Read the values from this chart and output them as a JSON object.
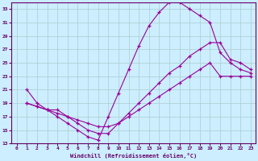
{
  "xlabel": "Windchill (Refroidissement éolien,°C)",
  "background_color": "#cceeff",
  "grid_color": "#aacccc",
  "line_color": "#990099",
  "xlim": [
    -0.5,
    23.5
  ],
  "ylim": [
    13,
    34
  ],
  "xticks": [
    0,
    1,
    2,
    3,
    4,
    5,
    6,
    7,
    8,
    9,
    10,
    11,
    12,
    13,
    14,
    15,
    16,
    17,
    18,
    19,
    20,
    21,
    22,
    23
  ],
  "yticks": [
    13,
    15,
    17,
    19,
    21,
    23,
    25,
    27,
    29,
    31,
    33
  ],
  "line1_x": [
    1,
    2,
    3,
    4,
    5,
    6,
    7,
    8,
    9,
    10,
    11,
    12,
    13,
    14,
    15,
    16,
    17,
    18,
    19,
    20,
    21,
    22,
    23
  ],
  "line1_y": [
    21,
    19,
    18,
    17,
    16,
    15,
    14,
    13.5,
    17,
    20.5,
    24,
    27.5,
    30.5,
    32.5,
    34,
    34,
    33,
    32,
    31,
    26.5,
    25,
    24,
    23.5
  ],
  "line2_x": [
    1,
    2,
    3,
    4,
    5,
    6,
    7,
    8,
    9,
    10,
    11,
    12,
    13,
    14,
    15,
    16,
    17,
    18,
    19,
    20,
    21,
    22,
    23
  ],
  "line2_y": [
    19,
    18.5,
    18,
    18,
    17,
    16,
    15,
    14.5,
    14.5,
    16,
    17.5,
    19,
    20.5,
    22,
    23.5,
    24.5,
    26,
    27,
    28,
    28,
    25.5,
    25,
    24
  ],
  "line3_x": [
    1,
    2,
    3,
    4,
    5,
    6,
    7,
    8,
    9,
    10,
    11,
    12,
    13,
    14,
    15,
    16,
    17,
    18,
    19,
    20,
    21,
    22,
    23
  ],
  "line3_y": [
    19,
    18.5,
    18,
    17.5,
    17,
    16.5,
    16,
    15.5,
    15.5,
    16,
    17,
    18,
    19,
    20,
    21,
    22,
    23,
    24,
    25,
    23,
    23,
    23,
    23
  ]
}
